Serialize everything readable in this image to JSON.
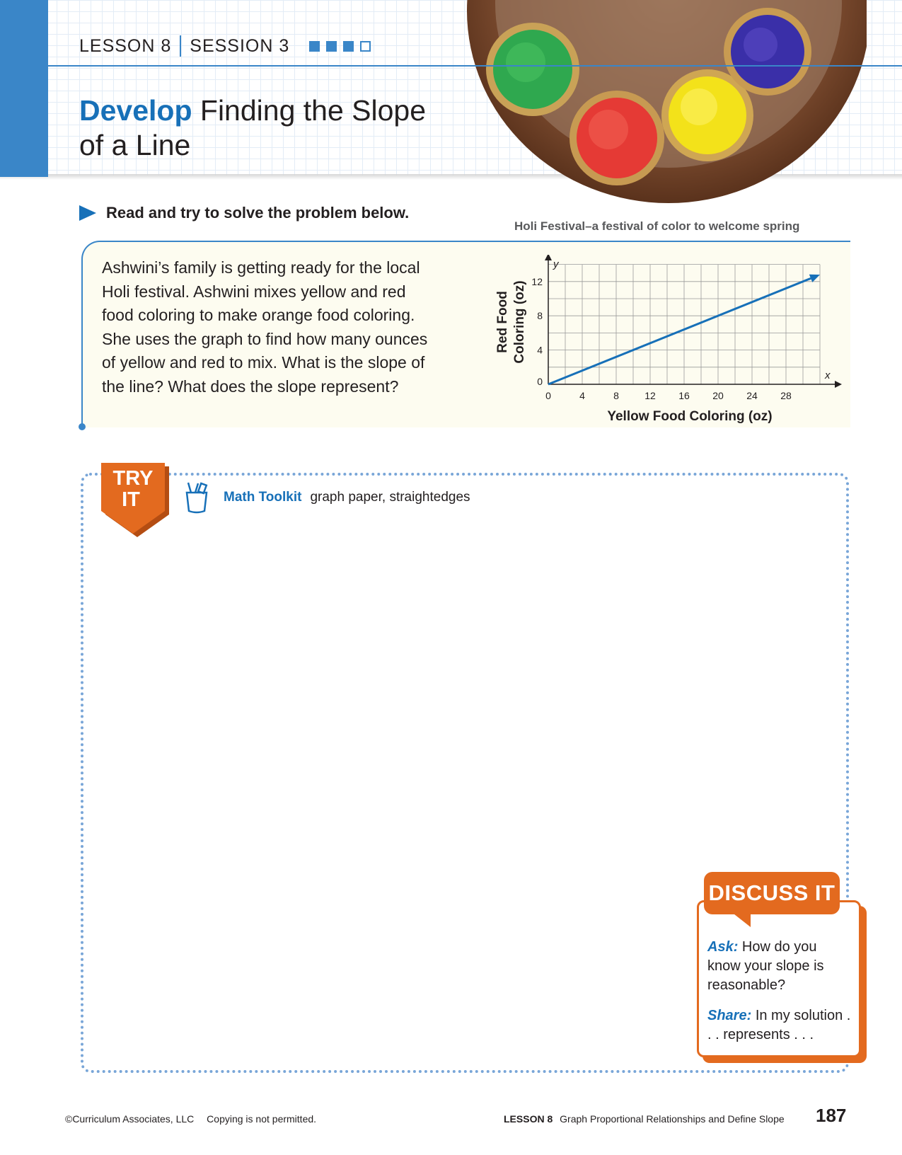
{
  "header": {
    "lesson": "LESSON 8",
    "session": "SESSION 3",
    "progress": {
      "completed": 3,
      "total": 4
    },
    "title_emphasis": "Develop",
    "title_line1": "Finding the Slope",
    "title_line2": "of a Line"
  },
  "photo_caption": "Holi Festival–a festival of color to welcome spring",
  "instruction": "Read and try to solve the problem below.",
  "problem": {
    "text": "Ashwini’s family is getting ready for the local Holi festival. Ashwini mixes yellow and red food coloring to make orange food coloring. She uses the graph to find how many ounces of yellow and red to mix. What is the slope of the line? What does the slope represent?"
  },
  "chart_data": {
    "type": "line",
    "xlabel": "Yellow Food Coloring (oz)",
    "ylabel_line1": "Red Food",
    "ylabel_line2": "Coloring (oz)",
    "x_axis_var": "x",
    "y_axis_var": "y",
    "xlim": [
      0,
      32
    ],
    "ylim": [
      0,
      14
    ],
    "x_ticks": [
      0,
      4,
      8,
      12,
      16,
      20,
      24,
      28
    ],
    "y_ticks": [
      0,
      4,
      8,
      12
    ],
    "grid": true,
    "series": [
      {
        "x": [
          0,
          32
        ],
        "y": [
          0,
          12.8
        ]
      }
    ],
    "line_color": "#1770b8"
  },
  "try_it": {
    "badge_line1": "TRY",
    "badge_line2": "IT",
    "toolkit_label": "Math Toolkit",
    "toolkit_items": "graph paper, straightedges"
  },
  "discuss": {
    "title": "DISCUSS IT",
    "ask_label": "Ask:",
    "ask_text": "How do you know your slope is reasonable?",
    "share_label": "Share:",
    "share_text": "In my solution . . . represents . . ."
  },
  "footer": {
    "copyright": "©Curriculum Associates, LLC",
    "notice": "Copying is not permitted.",
    "lesson": "LESSON 8",
    "lesson_title": "Graph Proportional Relationships and Define Slope",
    "page": "187"
  },
  "colors": {
    "blue": "#3a86c8",
    "dark_blue": "#1770b8",
    "orange": "#e36a1f"
  }
}
